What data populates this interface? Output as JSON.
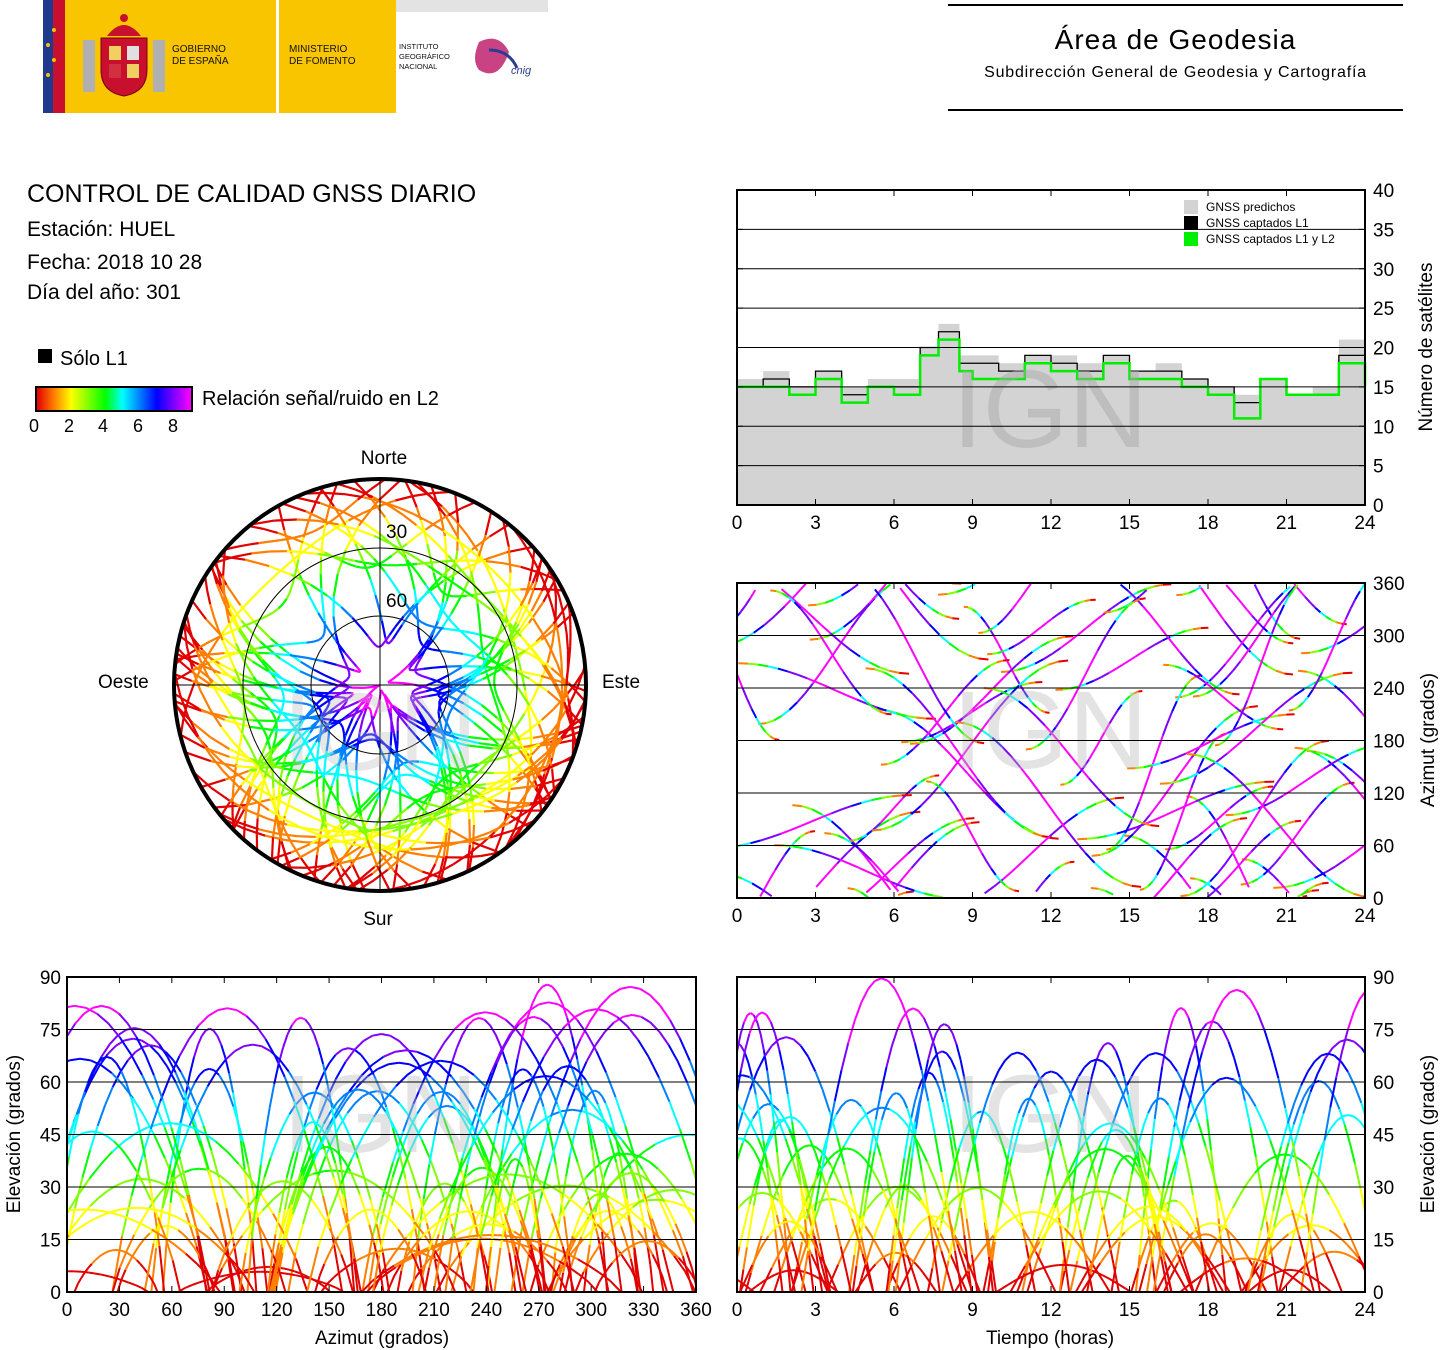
{
  "header": {
    "org_gov_line1": "GOBIERNO",
    "org_gov_line2": "DE ESPAÑA",
    "org_min_line1": "MINISTERIO",
    "org_min_line2": "DE FOMENTO",
    "org_ign_line1": "INSTITUTO",
    "org_ign_line2": "GEOGRÁFICO",
    "org_ign_line3": "NACIONAL",
    "cnig_logo_text": "cnig",
    "area_title": "Área de Geodesia",
    "area_subtitle": "Subdirección General de Geodesia y Cartografía"
  },
  "report": {
    "title": "CONTROL DE CALIDAD GNSS DIARIO",
    "station": "Estación: HUEL",
    "date": "Fecha: 2018 10 28",
    "doy": "Día del año: 301"
  },
  "legend": {
    "l1_only": "Sólo L1",
    "snr_label": "Relación señal/ruido en L2",
    "snr_ticks": [
      "0",
      "2",
      "4",
      "6",
      "8"
    ]
  },
  "watermark": "IGN",
  "colors": {
    "predicted": "#d3d3d3",
    "l1": "#000000",
    "l1l2": "#00ee00",
    "scale": [
      "#e00000",
      "#ff7f00",
      "#ffff00",
      "#7fff00",
      "#00ff00",
      "#00ffff",
      "#0080ff",
      "#0000ff",
      "#8000ff",
      "#ff00ff"
    ]
  },
  "chart_data": [
    {
      "type": "area",
      "id": "satellite-count",
      "xlim": [
        0,
        24
      ],
      "ylim": [
        0,
        40
      ],
      "x_ticks": [
        "0",
        "3",
        "6",
        "9",
        "12",
        "15",
        "18",
        "21",
        "24"
      ],
      "y_ticks": [
        "0",
        "5",
        "10",
        "15",
        "20",
        "25",
        "30",
        "35",
        "40"
      ],
      "ylabel": "Número de satélites",
      "grid": true,
      "legend_position": "top-right",
      "series": [
        {
          "name": "GNSS predichos",
          "x": [
            0,
            1,
            2,
            3,
            4,
            5,
            6,
            7,
            7.7,
            8.5,
            9,
            10,
            11,
            12,
            13,
            14,
            15,
            16,
            17,
            18,
            19,
            20,
            21,
            22,
            23,
            24
          ],
          "values": [
            16,
            17,
            15,
            17,
            15,
            16,
            16,
            20,
            23,
            19,
            19,
            18,
            19,
            19,
            18,
            19,
            17,
            18,
            16,
            15,
            14,
            16,
            14,
            15,
            21,
            17
          ]
        },
        {
          "name": "GNSS captados L1",
          "x": [
            0,
            1,
            2,
            3,
            4,
            5,
            6,
            7,
            7.7,
            8.5,
            9,
            10,
            11,
            12,
            13,
            14,
            15,
            16,
            17,
            18,
            19,
            20,
            21,
            22,
            23,
            24
          ],
          "values": [
            15,
            16,
            15,
            17,
            14,
            15,
            15,
            20,
            22,
            18,
            18,
            17,
            19,
            18,
            17,
            19,
            17,
            17,
            16,
            15,
            13,
            16,
            14,
            14,
            19,
            16
          ]
        },
        {
          "name": "GNSS captados L1 y L2",
          "x": [
            0,
            1,
            2,
            3,
            4,
            5,
            6,
            7,
            7.7,
            8.5,
            9,
            10,
            11,
            12,
            13,
            14,
            15,
            16,
            17,
            18,
            19,
            20,
            21,
            22,
            23,
            24
          ],
          "values": [
            15,
            15,
            14,
            16,
            13,
            15,
            14,
            19,
            21,
            17,
            16,
            16,
            18,
            17,
            16,
            18,
            16,
            16,
            15,
            14,
            11,
            16,
            14,
            14,
            18,
            15
          ]
        }
      ]
    },
    {
      "type": "scatter",
      "id": "skyplot",
      "labels": {
        "north": "Norte",
        "south": "Sur",
        "east": "Este",
        "west": "Oeste"
      },
      "elevation_rings": [
        "30",
        "60"
      ]
    },
    {
      "type": "scatter",
      "id": "azimuth-vs-time",
      "xlim": [
        0,
        24
      ],
      "ylim": [
        0,
        360
      ],
      "x_ticks": [
        "0",
        "3",
        "6",
        "9",
        "12",
        "15",
        "18",
        "21",
        "24"
      ],
      "y_ticks": [
        "0",
        "60",
        "120",
        "180",
        "240",
        "300",
        "360"
      ],
      "ylabel": "Azimut (grados)",
      "grid": true
    },
    {
      "type": "scatter",
      "id": "elevation-vs-azimuth",
      "xlim": [
        0,
        360
      ],
      "ylim": [
        0,
        90
      ],
      "x_ticks": [
        "0",
        "30",
        "60",
        "90",
        "120",
        "150",
        "180",
        "210",
        "240",
        "270",
        "300",
        "330",
        "360"
      ],
      "y_ticks": [
        "0",
        "15",
        "30",
        "45",
        "60",
        "75",
        "90"
      ],
      "xlabel": "Azimut (grados)",
      "ylabel": "Elevación (grados)",
      "grid": true
    },
    {
      "type": "line",
      "id": "elevation-vs-time",
      "xlim": [
        0,
        24
      ],
      "ylim": [
        0,
        90
      ],
      "x_ticks": [
        "0",
        "3",
        "6",
        "9",
        "12",
        "15",
        "18",
        "21",
        "24"
      ],
      "y_ticks": [
        "0",
        "15",
        "30",
        "45",
        "60",
        "75",
        "90"
      ],
      "xlabel": "Tiempo (horas)",
      "ylabel": "Elevación (grados)",
      "grid": true
    }
  ]
}
